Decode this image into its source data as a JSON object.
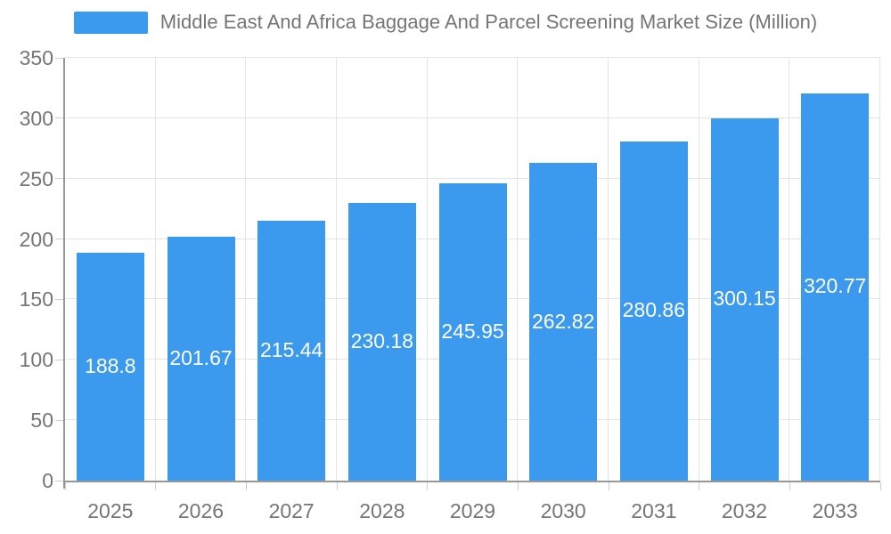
{
  "legend": {
    "label": "Middle East And Africa Baggage And Parcel Screening Market Size (Million)"
  },
  "chart_data": {
    "type": "bar",
    "title": "Middle East And Africa Baggage And Parcel Screening Market Size (Million)",
    "xlabel": "",
    "ylabel": "",
    "categories": [
      "2025",
      "2026",
      "2027",
      "2028",
      "2029",
      "2030",
      "2031",
      "2032",
      "2033"
    ],
    "values": [
      188.8,
      201.67,
      215.44,
      230.18,
      245.95,
      262.82,
      280.86,
      300.15,
      320.77
    ],
    "value_labels": [
      "188.8",
      "201.67",
      "215.44",
      "230.18",
      "245.95",
      "262.82",
      "280.86",
      "300.15",
      "320.77"
    ],
    "ylim": [
      0,
      350
    ],
    "yticks": [
      0,
      50,
      100,
      150,
      200,
      250,
      300,
      350
    ],
    "grid": true,
    "legend_position": "top-center",
    "colors": {
      "bar": "#3b99ee",
      "value_label_text": "#ffffff",
      "axis_text": "#757575",
      "title_text": "#757575",
      "gridline": "#e4e4e4",
      "axis_line": "#979797",
      "tick": "#cfcfcf",
      "background": "#ffffff"
    }
  }
}
